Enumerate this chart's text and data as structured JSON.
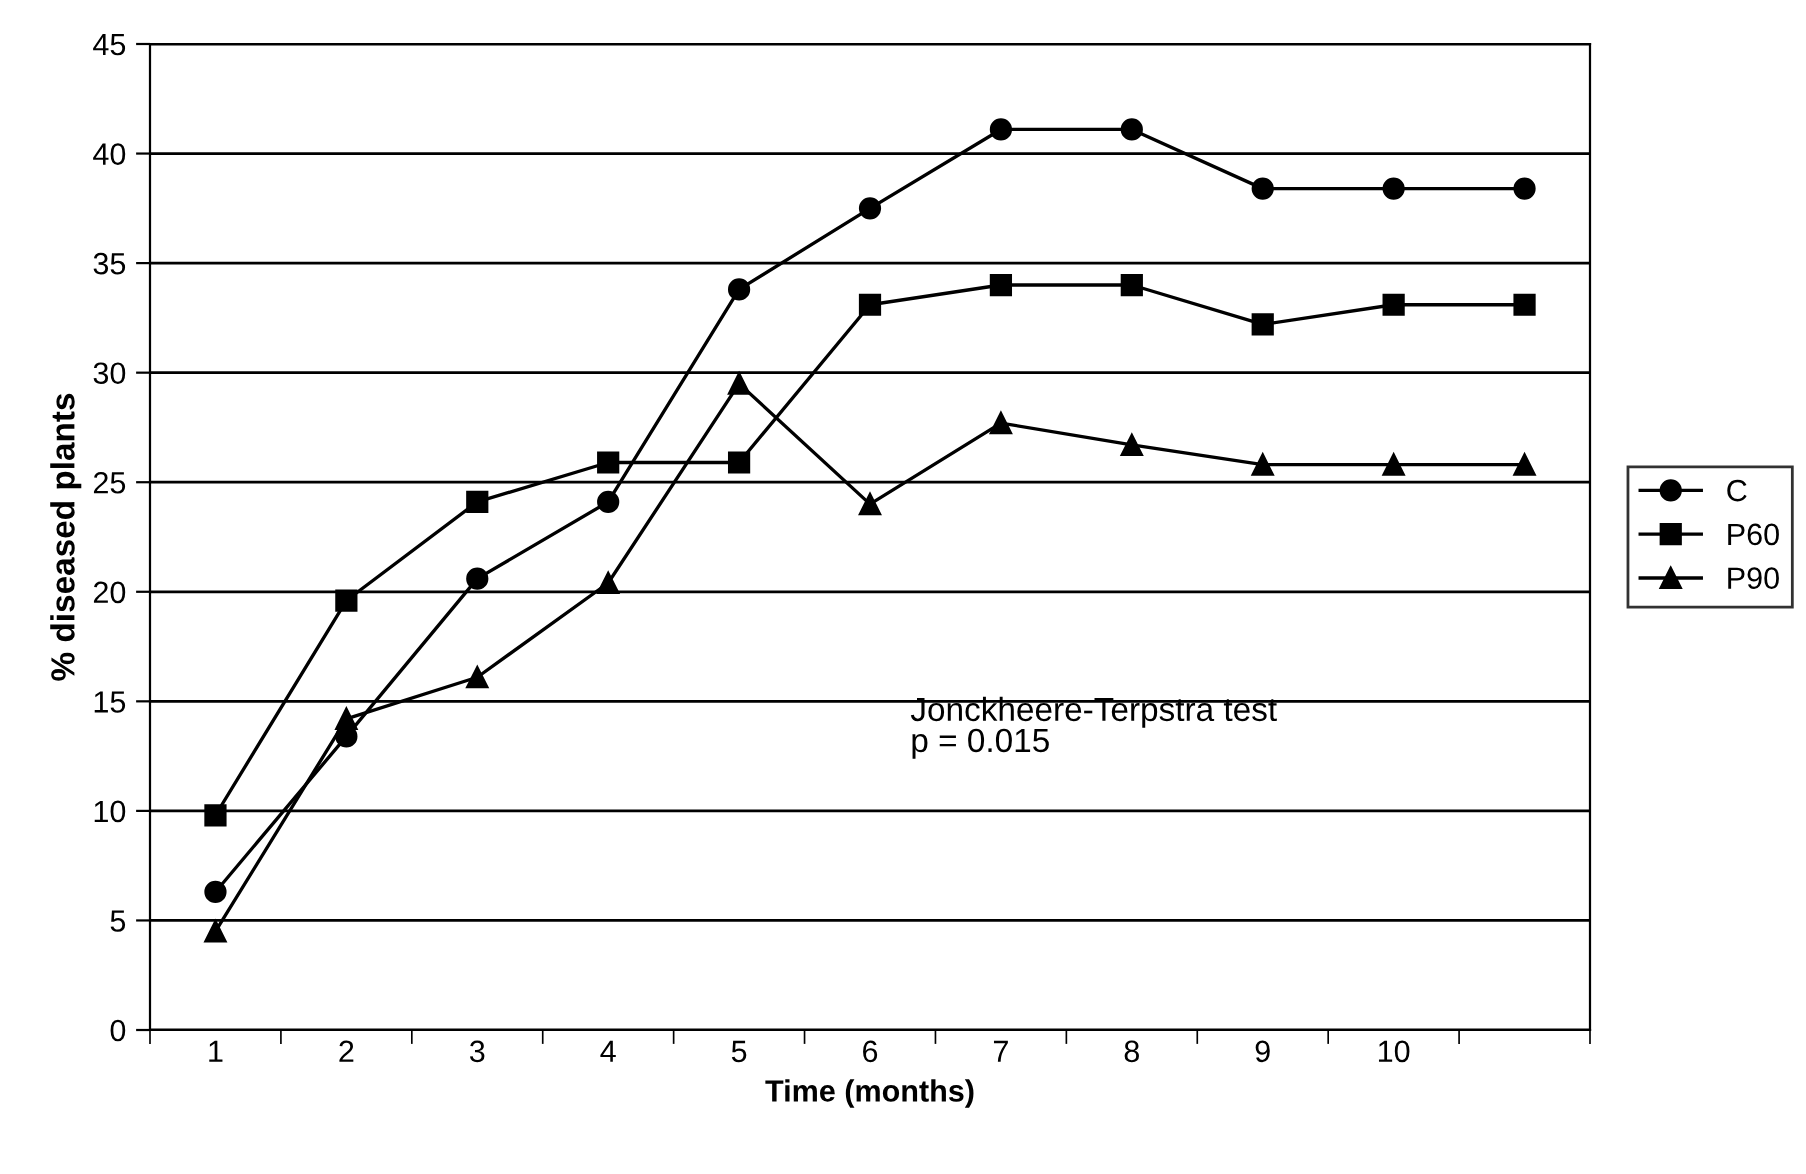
{
  "chart_data": {
    "type": "line",
    "xlabel": "Time (months)",
    "ylabel": "% diseased plants",
    "categories": [
      "1",
      "2",
      "3",
      "4",
      "5",
      "6",
      "7",
      "8",
      "9",
      "10",
      null
    ],
    "series": [
      {
        "name": "C",
        "color": "#000000",
        "marker": "circle",
        "values": [
          6.3,
          13.4,
          20.6,
          24.1,
          33.8,
          37.5,
          41.1,
          41.1,
          38.4,
          38.4,
          38.4
        ]
      },
      {
        "name": "P60",
        "color": "#000000",
        "marker": "square",
        "values": [
          9.8,
          19.6,
          24.1,
          25.9,
          25.9,
          33.1,
          34.0,
          34.0,
          32.2,
          33.1,
          33.1
        ]
      },
      {
        "name": "P90",
        "color": "#000000",
        "marker": "triangle",
        "values": [
          4.5,
          14.2,
          16.1,
          20.4,
          29.5,
          24.0,
          27.7,
          26.7,
          25.8,
          25.8,
          25.8
        ]
      }
    ],
    "ylim": [
      0,
      45
    ],
    "yticks": [
      0,
      5,
      10,
      15,
      20,
      25,
      30,
      35,
      40,
      45
    ],
    "grid": "y",
    "legend": "right",
    "line_style": "solid",
    "annotations": [
      "Jonckheere-Terpstra test\np = 0.015"
    ]
  }
}
